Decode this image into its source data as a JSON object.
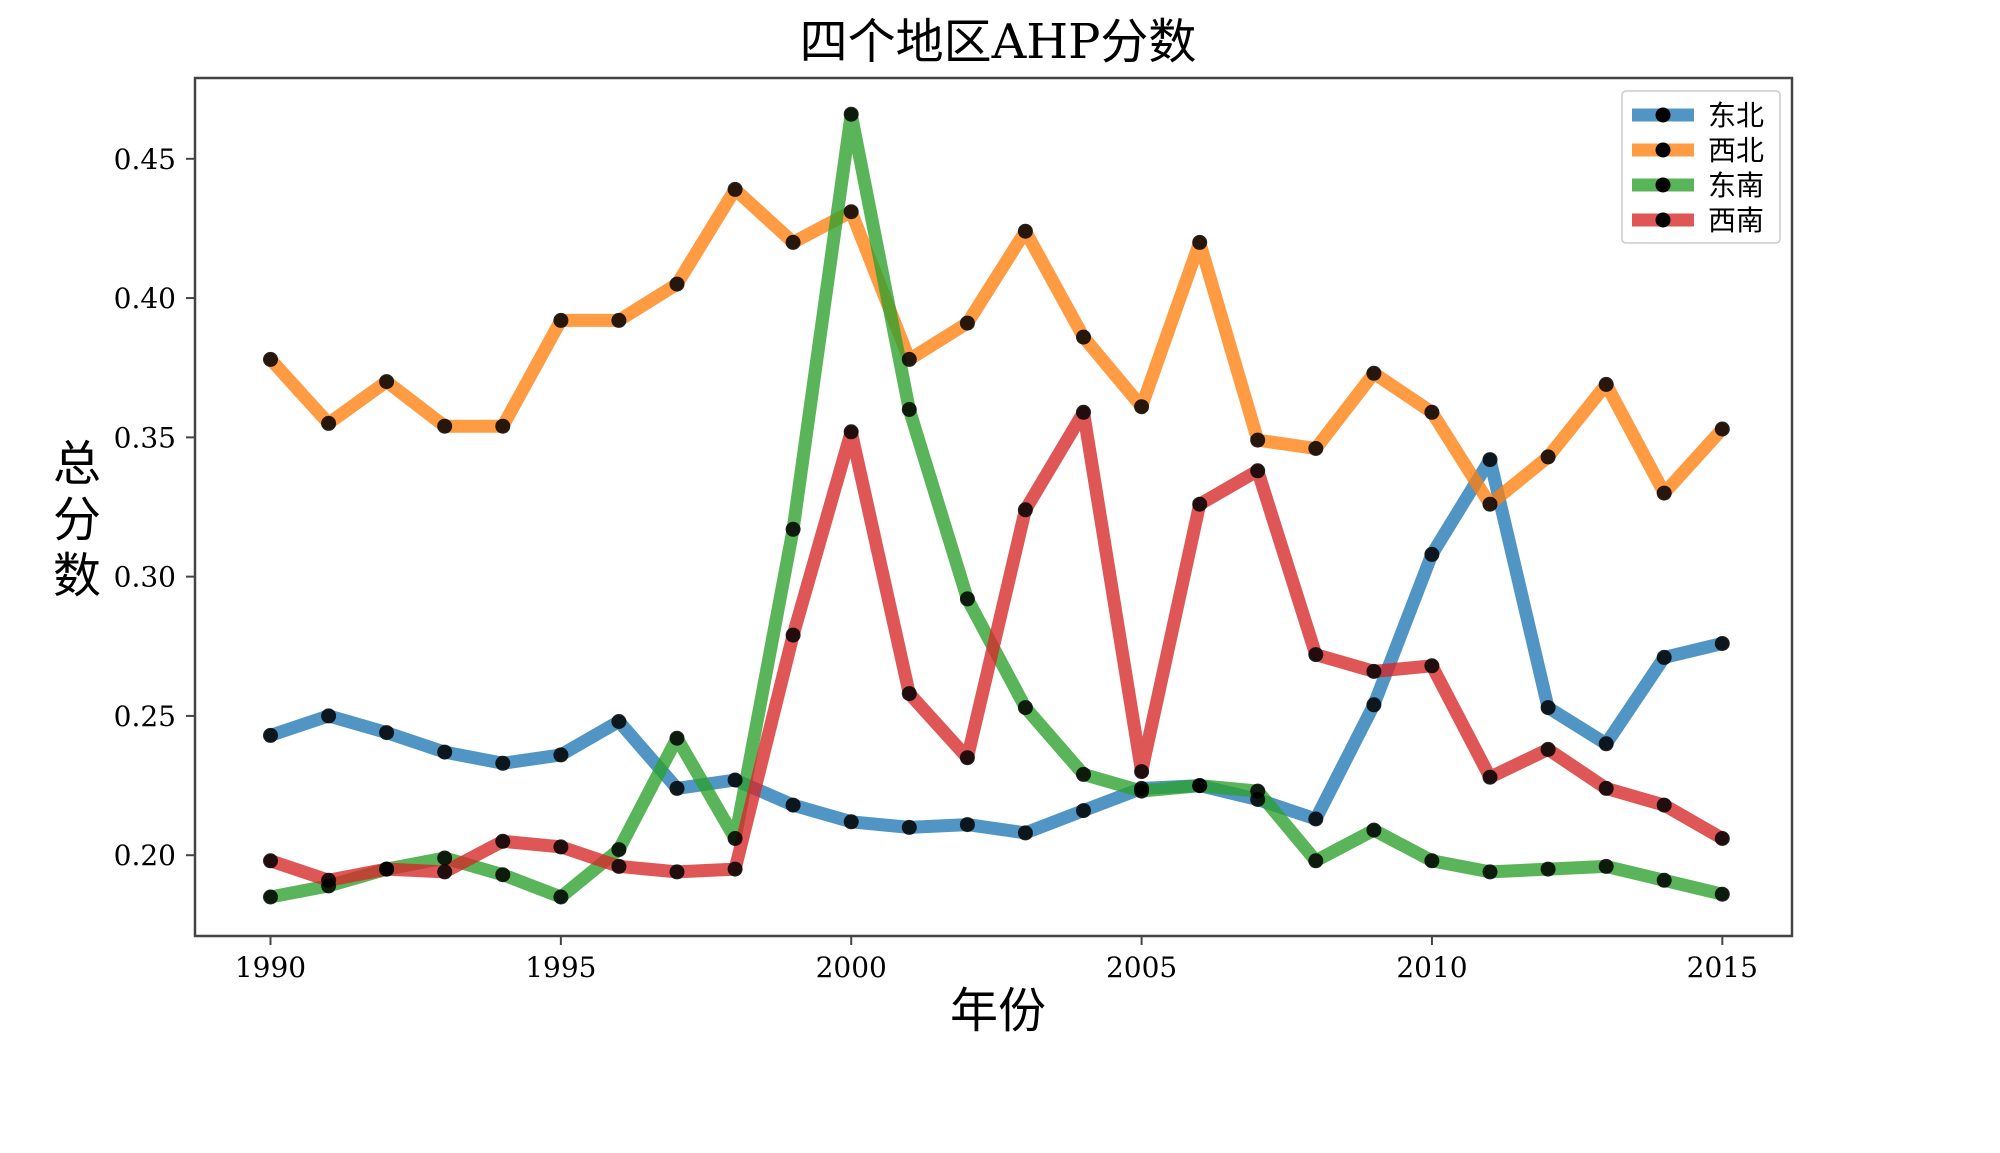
{
  "chart_data": {
    "type": "line",
    "title": "四个地区AHP分数",
    "xlabel": "年份",
    "ylabel": "总分数",
    "x": [
      1990,
      1991,
      1992,
      1993,
      1994,
      1995,
      1996,
      1997,
      1998,
      1999,
      2000,
      2001,
      2002,
      2003,
      2004,
      2005,
      2006,
      2007,
      2008,
      2009,
      2010,
      2011,
      2012,
      2013,
      2014,
      2015
    ],
    "xlim": [
      1988.7,
      2016.2
    ],
    "ylim": [
      0.171,
      0.479
    ],
    "xticks": [
      1990,
      1995,
      2000,
      2005,
      2010,
      2015
    ],
    "xtick_labels": [
      "1990",
      "1995",
      "2000",
      "2005",
      "2010",
      "2015"
    ],
    "yticks": [
      0.2,
      0.25,
      0.3,
      0.35,
      0.4,
      0.45
    ],
    "ytick_labels": [
      "0.20",
      "0.25",
      "0.30",
      "0.35",
      "0.40",
      "0.45"
    ],
    "grid": false,
    "legend_position": "top-right",
    "marker_color": "#000000",
    "series": [
      {
        "name": "东北",
        "color": "#1f77b4",
        "values": [
          0.243,
          0.25,
          0.244,
          0.237,
          0.233,
          0.236,
          0.248,
          0.224,
          0.227,
          0.218,
          0.212,
          0.21,
          0.211,
          0.208,
          0.216,
          0.224,
          0.225,
          0.22,
          0.213,
          0.254,
          0.308,
          0.342,
          0.253,
          0.24,
          0.271,
          0.276
        ]
      },
      {
        "name": "西北",
        "color": "#ff7f0e",
        "values": [
          0.378,
          0.355,
          0.37,
          0.354,
          0.354,
          0.392,
          0.392,
          0.405,
          0.439,
          0.42,
          0.431,
          0.378,
          0.391,
          0.424,
          0.386,
          0.361,
          0.42,
          0.349,
          0.346,
          0.373,
          0.359,
          0.326,
          0.343,
          0.369,
          0.33,
          0.353
        ]
      },
      {
        "name": "东南",
        "color": "#2ca02c",
        "values": [
          0.185,
          0.189,
          0.195,
          0.199,
          0.193,
          0.185,
          0.202,
          0.242,
          0.206,
          0.317,
          0.466,
          0.36,
          0.292,
          0.253,
          0.229,
          0.223,
          0.225,
          0.223,
          0.198,
          0.209,
          0.198,
          0.194,
          0.195,
          0.196,
          0.191,
          0.186
        ]
      },
      {
        "name": "西南",
        "color": "#d62728",
        "values": [
          0.198,
          0.191,
          0.195,
          0.194,
          0.205,
          0.203,
          0.196,
          0.194,
          0.195,
          0.279,
          0.352,
          0.258,
          0.235,
          0.324,
          0.359,
          0.23,
          0.326,
          0.338,
          0.272,
          0.266,
          0.268,
          0.228,
          0.238,
          0.224,
          0.218,
          0.206
        ]
      }
    ]
  }
}
